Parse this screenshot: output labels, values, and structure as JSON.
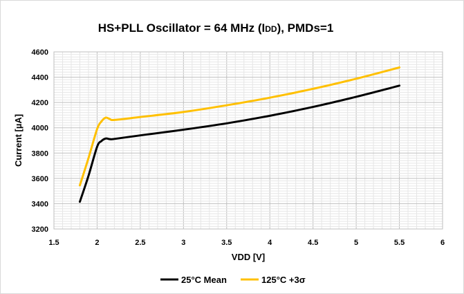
{
  "chart_data": {
    "type": "line",
    "title_main": "HS+PLL Oscillator = 64 MHz (I",
    "title_sub": "DD",
    "title_end": "), PMDs=1",
    "xlabel": "VDD [V]",
    "ylabel": "Current [µA]",
    "xlim": [
      1.5,
      6
    ],
    "ylim": [
      3200,
      4600
    ],
    "x_ticks": [
      "1.5",
      "2",
      "2.5",
      "3",
      "3.5",
      "4",
      "4.5",
      "5",
      "5.5",
      "6"
    ],
    "y_ticks": [
      "3200",
      "3400",
      "3600",
      "3800",
      "4000",
      "4200",
      "4400",
      "4600"
    ],
    "grid": true,
    "legend_position": "bottom",
    "series": [
      {
        "name": "25°C Mean",
        "color": "#000000",
        "x": [
          1.8,
          1.9,
          2.0,
          2.05,
          2.1,
          2.15,
          2.2,
          2.5,
          3.0,
          3.5,
          4.0,
          4.5,
          5.0,
          5.5
        ],
        "y": [
          3415,
          3620,
          3850,
          3895,
          3915,
          3910,
          3912,
          3940,
          3985,
          4035,
          4095,
          4165,
          4245,
          4333
        ]
      },
      {
        "name": "125°C +3σ",
        "color": "#ffc000",
        "x": [
          1.8,
          1.9,
          2.0,
          2.05,
          2.1,
          2.15,
          2.2,
          2.5,
          3.0,
          3.5,
          4.0,
          4.5,
          5.0,
          5.5
        ],
        "y": [
          3545,
          3760,
          3990,
          4050,
          4080,
          4068,
          4062,
          4085,
          4125,
          4178,
          4238,
          4308,
          4388,
          4477
        ]
      }
    ]
  }
}
